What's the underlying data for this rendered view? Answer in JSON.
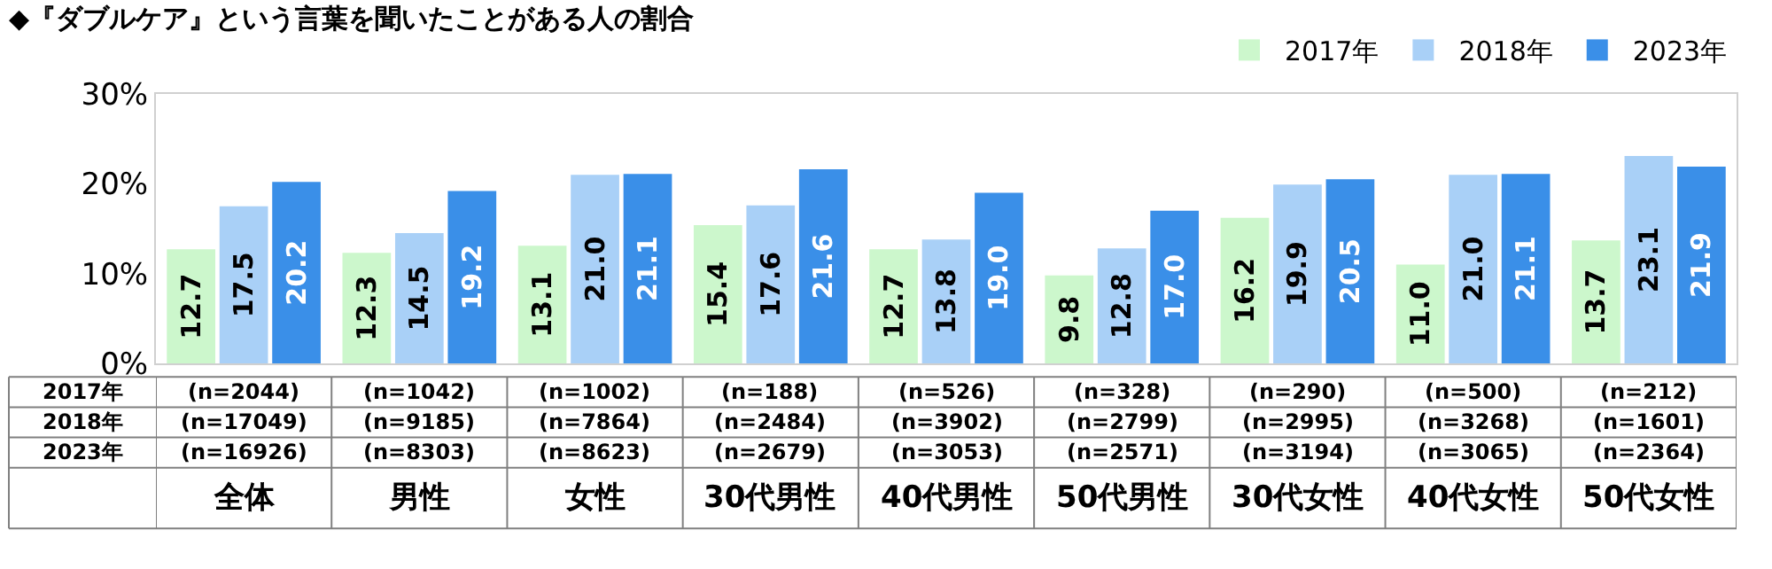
{
  "chart_data": {
    "type": "bar",
    "title": "◆『ダブルケア』という言葉を聞いたことがある人の割合",
    "categories": [
      "全体",
      "男性",
      "女性",
      "30代男性",
      "40代男性",
      "50代男性",
      "30代女性",
      "40代女性",
      "50代女性"
    ],
    "series": [
      {
        "name": "2017年",
        "color": "#ccf7cc",
        "values": [
          12.7,
          12.3,
          13.1,
          15.4,
          12.7,
          9.8,
          16.2,
          11.0,
          13.7
        ],
        "value_labels": [
          "12.7",
          "12.3",
          "13.1",
          "15.4",
          "12.7",
          "9.8",
          "16.2",
          "11.0",
          "13.7"
        ]
      },
      {
        "name": "2018年",
        "color": "#a9d0f7",
        "values": [
          17.5,
          14.5,
          21.0,
          17.6,
          13.8,
          12.8,
          19.9,
          21.0,
          23.1
        ],
        "value_labels": [
          "17.5",
          "14.5",
          "21.0",
          "17.6",
          "13.8",
          "12.8",
          "19.9",
          "21.0",
          "23.1"
        ]
      },
      {
        "name": "2023年",
        "color": "#3a8fe8",
        "values": [
          20.2,
          19.2,
          21.1,
          21.6,
          19.0,
          17.0,
          20.5,
          21.1,
          21.9
        ],
        "value_labels": [
          "20.2",
          "19.2",
          "21.1",
          "21.6",
          "19.0",
          "17.0",
          "20.5",
          "21.1",
          "21.9"
        ]
      }
    ],
    "ylim": [
      0,
      30
    ],
    "yticks": [
      {
        "value": 0,
        "label": "0%"
      },
      {
        "value": 10,
        "label": "10%"
      },
      {
        "value": 20,
        "label": "20%"
      },
      {
        "value": 30,
        "label": "30%"
      }
    ],
    "legend": "top right",
    "annotations": [
      "(n=2044)",
      "(n=1042)",
      "(n=1002)",
      "(n=188)",
      "(n=526)",
      "(n=328)",
      "(n=290)",
      "(n=500)",
      "(n=212)",
      "(n=17049)",
      "(n=9185)",
      "(n=7864)",
      "(n=2484)",
      "(n=3902)",
      "(n=2799)",
      "(n=2995)",
      "(n=3268)",
      "(n=1601)",
      "(n=16926)",
      "(n=8303)",
      "(n=8623)",
      "(n=2679)",
      "(n=3053)",
      "(n=2571)",
      "(n=3194)",
      "(n=3065)",
      "(n=2364)"
    ]
  }
}
